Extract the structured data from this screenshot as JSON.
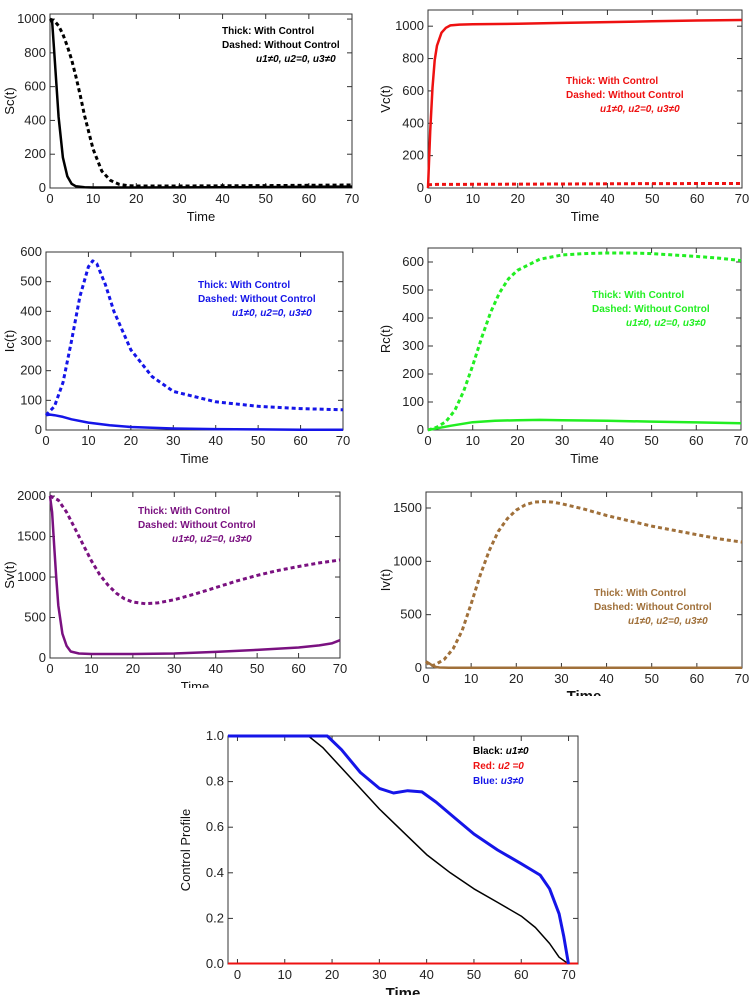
{
  "chart_data": [
    {
      "id": "sc",
      "type": "line",
      "ylabel": "Sc(t)",
      "xlabel": "Time",
      "color": "#000000",
      "xlim": [
        0,
        70
      ],
      "ylim": [
        0,
        1030
      ],
      "xticks": [
        0,
        10,
        20,
        30,
        40,
        50,
        60,
        70
      ],
      "yticks": [
        0,
        200,
        400,
        600,
        800,
        1000
      ],
      "legend": [
        "Thick:     With Control",
        "Dashed:  Without Control",
        "u1≠0, u2=0, u3≠0"
      ],
      "series": [
        {
          "name": "With Control",
          "style": "solid",
          "x": [
            0,
            0.5,
            1,
            2,
            3,
            4,
            5,
            6,
            8,
            10,
            20,
            40,
            60,
            70
          ],
          "y": [
            1000,
            980,
            800,
            420,
            180,
            70,
            25,
            10,
            4,
            3,
            3,
            4,
            7,
            8
          ]
        },
        {
          "name": "Without Control",
          "style": "dashed",
          "x": [
            0,
            1,
            2,
            3,
            4,
            5,
            6,
            7,
            8,
            10,
            12,
            14,
            16,
            18,
            20,
            30,
            40,
            50,
            60,
            70
          ],
          "y": [
            1000,
            990,
            960,
            910,
            840,
            760,
            660,
            550,
            430,
            230,
            100,
            45,
            22,
            14,
            12,
            12,
            13,
            14,
            16,
            18
          ]
        }
      ]
    },
    {
      "id": "vc",
      "type": "line",
      "ylabel": "Vc(t)",
      "xlabel": "Time",
      "color": "#ee1111",
      "xlim": [
        0,
        70
      ],
      "ylim": [
        0,
        1100
      ],
      "xticks": [
        0,
        10,
        20,
        30,
        40,
        50,
        60,
        70
      ],
      "yticks": [
        0,
        200,
        400,
        600,
        800,
        1000
      ],
      "legend": [
        "Thick:     With Control",
        "Dashed:  Without Control",
        "u1≠0, u2=0, u3≠0"
      ],
      "series": [
        {
          "name": "With Control",
          "style": "solid",
          "x": [
            0,
            0.5,
            1,
            1.5,
            2,
            3,
            4,
            5,
            7,
            10,
            20,
            30,
            40,
            50,
            60,
            70
          ],
          "y": [
            0,
            350,
            620,
            790,
            880,
            960,
            990,
            1005,
            1010,
            1012,
            1015,
            1020,
            1025,
            1030,
            1035,
            1038
          ]
        },
        {
          "name": "Without Control",
          "style": "dashed",
          "x": [
            0,
            2,
            10,
            30,
            50,
            70
          ],
          "y": [
            20,
            22,
            23,
            25,
            27,
            28
          ]
        }
      ]
    },
    {
      "id": "ic",
      "type": "line",
      "ylabel": "Ic(t)",
      "xlabel": "Time",
      "color": "#1515e8",
      "xlim": [
        0,
        70
      ],
      "ylim": [
        0,
        600
      ],
      "xticks": [
        0,
        10,
        20,
        30,
        40,
        50,
        60,
        70
      ],
      "yticks": [
        0,
        100,
        200,
        300,
        400,
        500,
        600
      ],
      "legend": [
        "Thick:     With Control",
        "Dashed:  Without Control",
        "u1≠0, u2=0, u3≠0"
      ],
      "series": [
        {
          "name": "With Control",
          "style": "solid",
          "x": [
            0,
            1,
            2,
            4,
            6,
            10,
            15,
            20,
            30,
            40,
            50,
            60,
            70
          ],
          "y": [
            50,
            52,
            50,
            44,
            36,
            25,
            16,
            10,
            5,
            3,
            2,
            1,
            1
          ]
        },
        {
          "name": "Without Control",
          "style": "dashed",
          "x": [
            0,
            2,
            4,
            6,
            8,
            10,
            11,
            12,
            14,
            16,
            20,
            25,
            30,
            40,
            50,
            60,
            70
          ],
          "y": [
            50,
            80,
            160,
            300,
            450,
            550,
            570,
            560,
            490,
            400,
            270,
            180,
            130,
            95,
            80,
            72,
            68
          ]
        }
      ]
    },
    {
      "id": "rc",
      "type": "line",
      "ylabel": "Rc(t)",
      "xlabel": "Time",
      "color": "#22ee22",
      "xlim": [
        0,
        70
      ],
      "ylim": [
        0,
        650
      ],
      "xticks": [
        0,
        10,
        20,
        30,
        40,
        50,
        60,
        70
      ],
      "yticks": [
        0,
        100,
        200,
        300,
        400,
        500,
        600
      ],
      "legend": [
        "Thick:     With Control",
        "Dashed:  Without Control",
        "u1≠0, u2=0, u3≠0"
      ],
      "series": [
        {
          "name": "With Control",
          "style": "solid",
          "x": [
            0,
            5,
            10,
            15,
            20,
            25,
            30,
            40,
            50,
            60,
            70
          ],
          "y": [
            0,
            15,
            28,
            33,
            35,
            36,
            35,
            33,
            30,
            27,
            24
          ]
        },
        {
          "name": "Without Control",
          "style": "dashed",
          "x": [
            0,
            2,
            4,
            6,
            8,
            10,
            12,
            14,
            16,
            18,
            20,
            25,
            30,
            35,
            40,
            45,
            50,
            55,
            60,
            65,
            70
          ],
          "y": [
            0,
            10,
            30,
            70,
            140,
            230,
            330,
            420,
            490,
            540,
            570,
            610,
            625,
            630,
            632,
            632,
            630,
            625,
            620,
            614,
            605
          ]
        }
      ]
    },
    {
      "id": "sv",
      "type": "line",
      "ylabel": "Sv(t)",
      "xlabel": "Time",
      "color": "#7a1180",
      "xlim": [
        0,
        70
      ],
      "ylim": [
        0,
        2050
      ],
      "xticks": [
        0,
        10,
        20,
        30,
        40,
        50,
        60,
        70
      ],
      "yticks": [
        0,
        500,
        1000,
        1500,
        2000
      ],
      "legend": [
        "Thick:     With Control",
        "Dashed:  Without Control",
        "u1≠0, u2=0, u3≠0"
      ],
      "series": [
        {
          "name": "With Control",
          "style": "solid",
          "x": [
            0,
            0.5,
            1,
            1.5,
            2,
            3,
            4,
            5,
            7,
            10,
            20,
            30,
            40,
            50,
            60,
            65,
            68,
            70
          ],
          "y": [
            2000,
            1800,
            1400,
            1000,
            650,
            300,
            150,
            80,
            55,
            50,
            50,
            55,
            75,
            100,
            130,
            155,
            180,
            220
          ]
        },
        {
          "name": "Without Control",
          "style": "dashed",
          "x": [
            0,
            2,
            4,
            6,
            8,
            10,
            12,
            14,
            16,
            18,
            20,
            23,
            26,
            30,
            35,
            40,
            45,
            50,
            55,
            60,
            65,
            70
          ],
          "y": [
            2000,
            1950,
            1800,
            1600,
            1400,
            1200,
            1030,
            900,
            800,
            730,
            690,
            670,
            680,
            720,
            790,
            870,
            950,
            1020,
            1080,
            1130,
            1175,
            1210
          ]
        }
      ]
    },
    {
      "id": "iv",
      "type": "line",
      "ylabel": "Iv(t)",
      "xlabel": "Time",
      "color": "#a0703a",
      "xlim": [
        0,
        70
      ],
      "ylim": [
        0,
        1650
      ],
      "xticks": [
        0,
        10,
        20,
        30,
        40,
        50,
        60,
        70
      ],
      "yticks": [
        0,
        500,
        1000,
        1500
      ],
      "legend": [
        "Thick:     With Control",
        "Dashed:  Without Control",
        "u1≠0, u2=0, u3≠0"
      ],
      "series": [
        {
          "name": "With Control",
          "style": "solid",
          "x": [
            0,
            0.5,
            1,
            1.5,
            2,
            3,
            5,
            10,
            30,
            50,
            70
          ],
          "y": [
            60,
            50,
            35,
            20,
            10,
            5,
            3,
            2,
            2,
            2,
            2
          ]
        },
        {
          "name": "Without Control",
          "style": "dashed",
          "x": [
            0,
            1,
            2,
            4,
            6,
            8,
            10,
            12,
            14,
            16,
            18,
            20,
            22,
            24,
            26,
            28,
            30,
            35,
            40,
            45,
            50,
            55,
            60,
            65,
            70
          ],
          "y": [
            60,
            20,
            30,
            80,
            180,
            350,
            600,
            870,
            1100,
            1280,
            1400,
            1480,
            1530,
            1555,
            1560,
            1555,
            1540,
            1490,
            1430,
            1380,
            1330,
            1290,
            1250,
            1210,
            1180
          ]
        }
      ]
    },
    {
      "id": "cp",
      "type": "line",
      "ylabel": "Control Profile",
      "xlabel": "Time",
      "xlim": [
        -2,
        72
      ],
      "ylim": [
        0,
        1.0
      ],
      "xticks": [
        0,
        10,
        20,
        30,
        40,
        50,
        60,
        70
      ],
      "yticks": [
        0.0,
        0.2,
        0.4,
        0.6,
        0.8,
        1.0
      ],
      "legend": [
        {
          "prefix": "Black: ",
          "expr": "u1≠0",
          "color": "#000000"
        },
        {
          "prefix": "Red:  ",
          "expr": "u2 =0",
          "color": "#ee1111"
        },
        {
          "prefix": "Blue:  ",
          "expr": "u3≠0",
          "color": "#1515e8"
        }
      ],
      "series": [
        {
          "name": "u1",
          "color": "#000000",
          "width": 1.5,
          "x": [
            -2,
            15,
            18,
            22,
            26,
            30,
            35,
            40,
            45,
            50,
            55,
            60,
            63,
            66,
            68,
            70
          ],
          "y": [
            1.0,
            1.0,
            0.95,
            0.86,
            0.77,
            0.68,
            0.58,
            0.48,
            0.4,
            0.33,
            0.27,
            0.21,
            0.16,
            0.09,
            0.03,
            0.0
          ]
        },
        {
          "name": "u2",
          "color": "#ee1111",
          "width": 2,
          "x": [
            -2,
            72
          ],
          "y": [
            0.002,
            0.002
          ]
        },
        {
          "name": "u3",
          "color": "#1515e8",
          "width": 3,
          "x": [
            -2,
            19,
            22,
            26,
            30,
            33,
            36,
            39,
            42,
            46,
            50,
            55,
            60,
            64,
            66,
            68,
            69,
            70
          ],
          "y": [
            1.0,
            1.0,
            0.94,
            0.84,
            0.77,
            0.75,
            0.76,
            0.755,
            0.71,
            0.64,
            0.57,
            0.5,
            0.44,
            0.39,
            0.33,
            0.22,
            0.12,
            0.0
          ]
        }
      ]
    }
  ]
}
